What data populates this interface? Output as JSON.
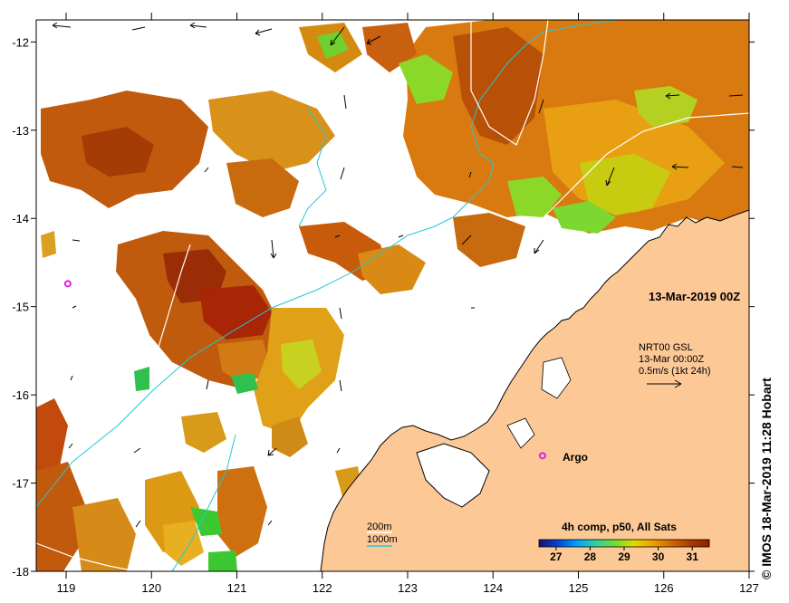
{
  "map": {
    "date_label": "13-Mar-2019 00Z",
    "product": {
      "name": "NRT00 GSL",
      "time": "13-Mar 00:00Z",
      "scale": "0.5m/s (1kt 24h)"
    },
    "argo_label": "Argo",
    "isobaths": [
      {
        "label": "200m",
        "color": "#ffffff"
      },
      {
        "label": "1000m",
        "color": "#22c8d8"
      }
    ],
    "colorbar": {
      "title": "4h comp, p50, All Sats",
      "ticks": [
        "27",
        "28",
        "29",
        "30",
        "31"
      ],
      "min": 26.5,
      "max": 31.5,
      "colors": [
        "#1e0a6e",
        "#0046d2",
        "#00a0ff",
        "#30d2a0",
        "#6edc32",
        "#dcdc00",
        "#f0a000",
        "#d26400",
        "#aa3c00",
        "#8c1e00"
      ]
    },
    "x_axis": {
      "ticks": [
        "119",
        "120",
        "121",
        "122",
        "123",
        "124",
        "125",
        "126",
        "127"
      ],
      "min": 118.65,
      "max": 127
    },
    "y_axis": {
      "ticks": [
        "-12",
        "-13",
        "-14",
        "-15",
        "-16",
        "-17",
        "-18"
      ],
      "min": -18,
      "max": -11.75
    },
    "credit": "© IMOS 18-Mar-2019 11:28 Hobart",
    "colors": {
      "land": "#fcc896",
      "coast": "#000000",
      "isobath_200": "#ffffff",
      "isobath_1000": "#22c8d8",
      "argo": "#e020e0"
    },
    "argo_floats": [
      [
        119.02,
        -14.74
      ],
      [
        124.58,
        -16.69
      ]
    ]
  }
}
